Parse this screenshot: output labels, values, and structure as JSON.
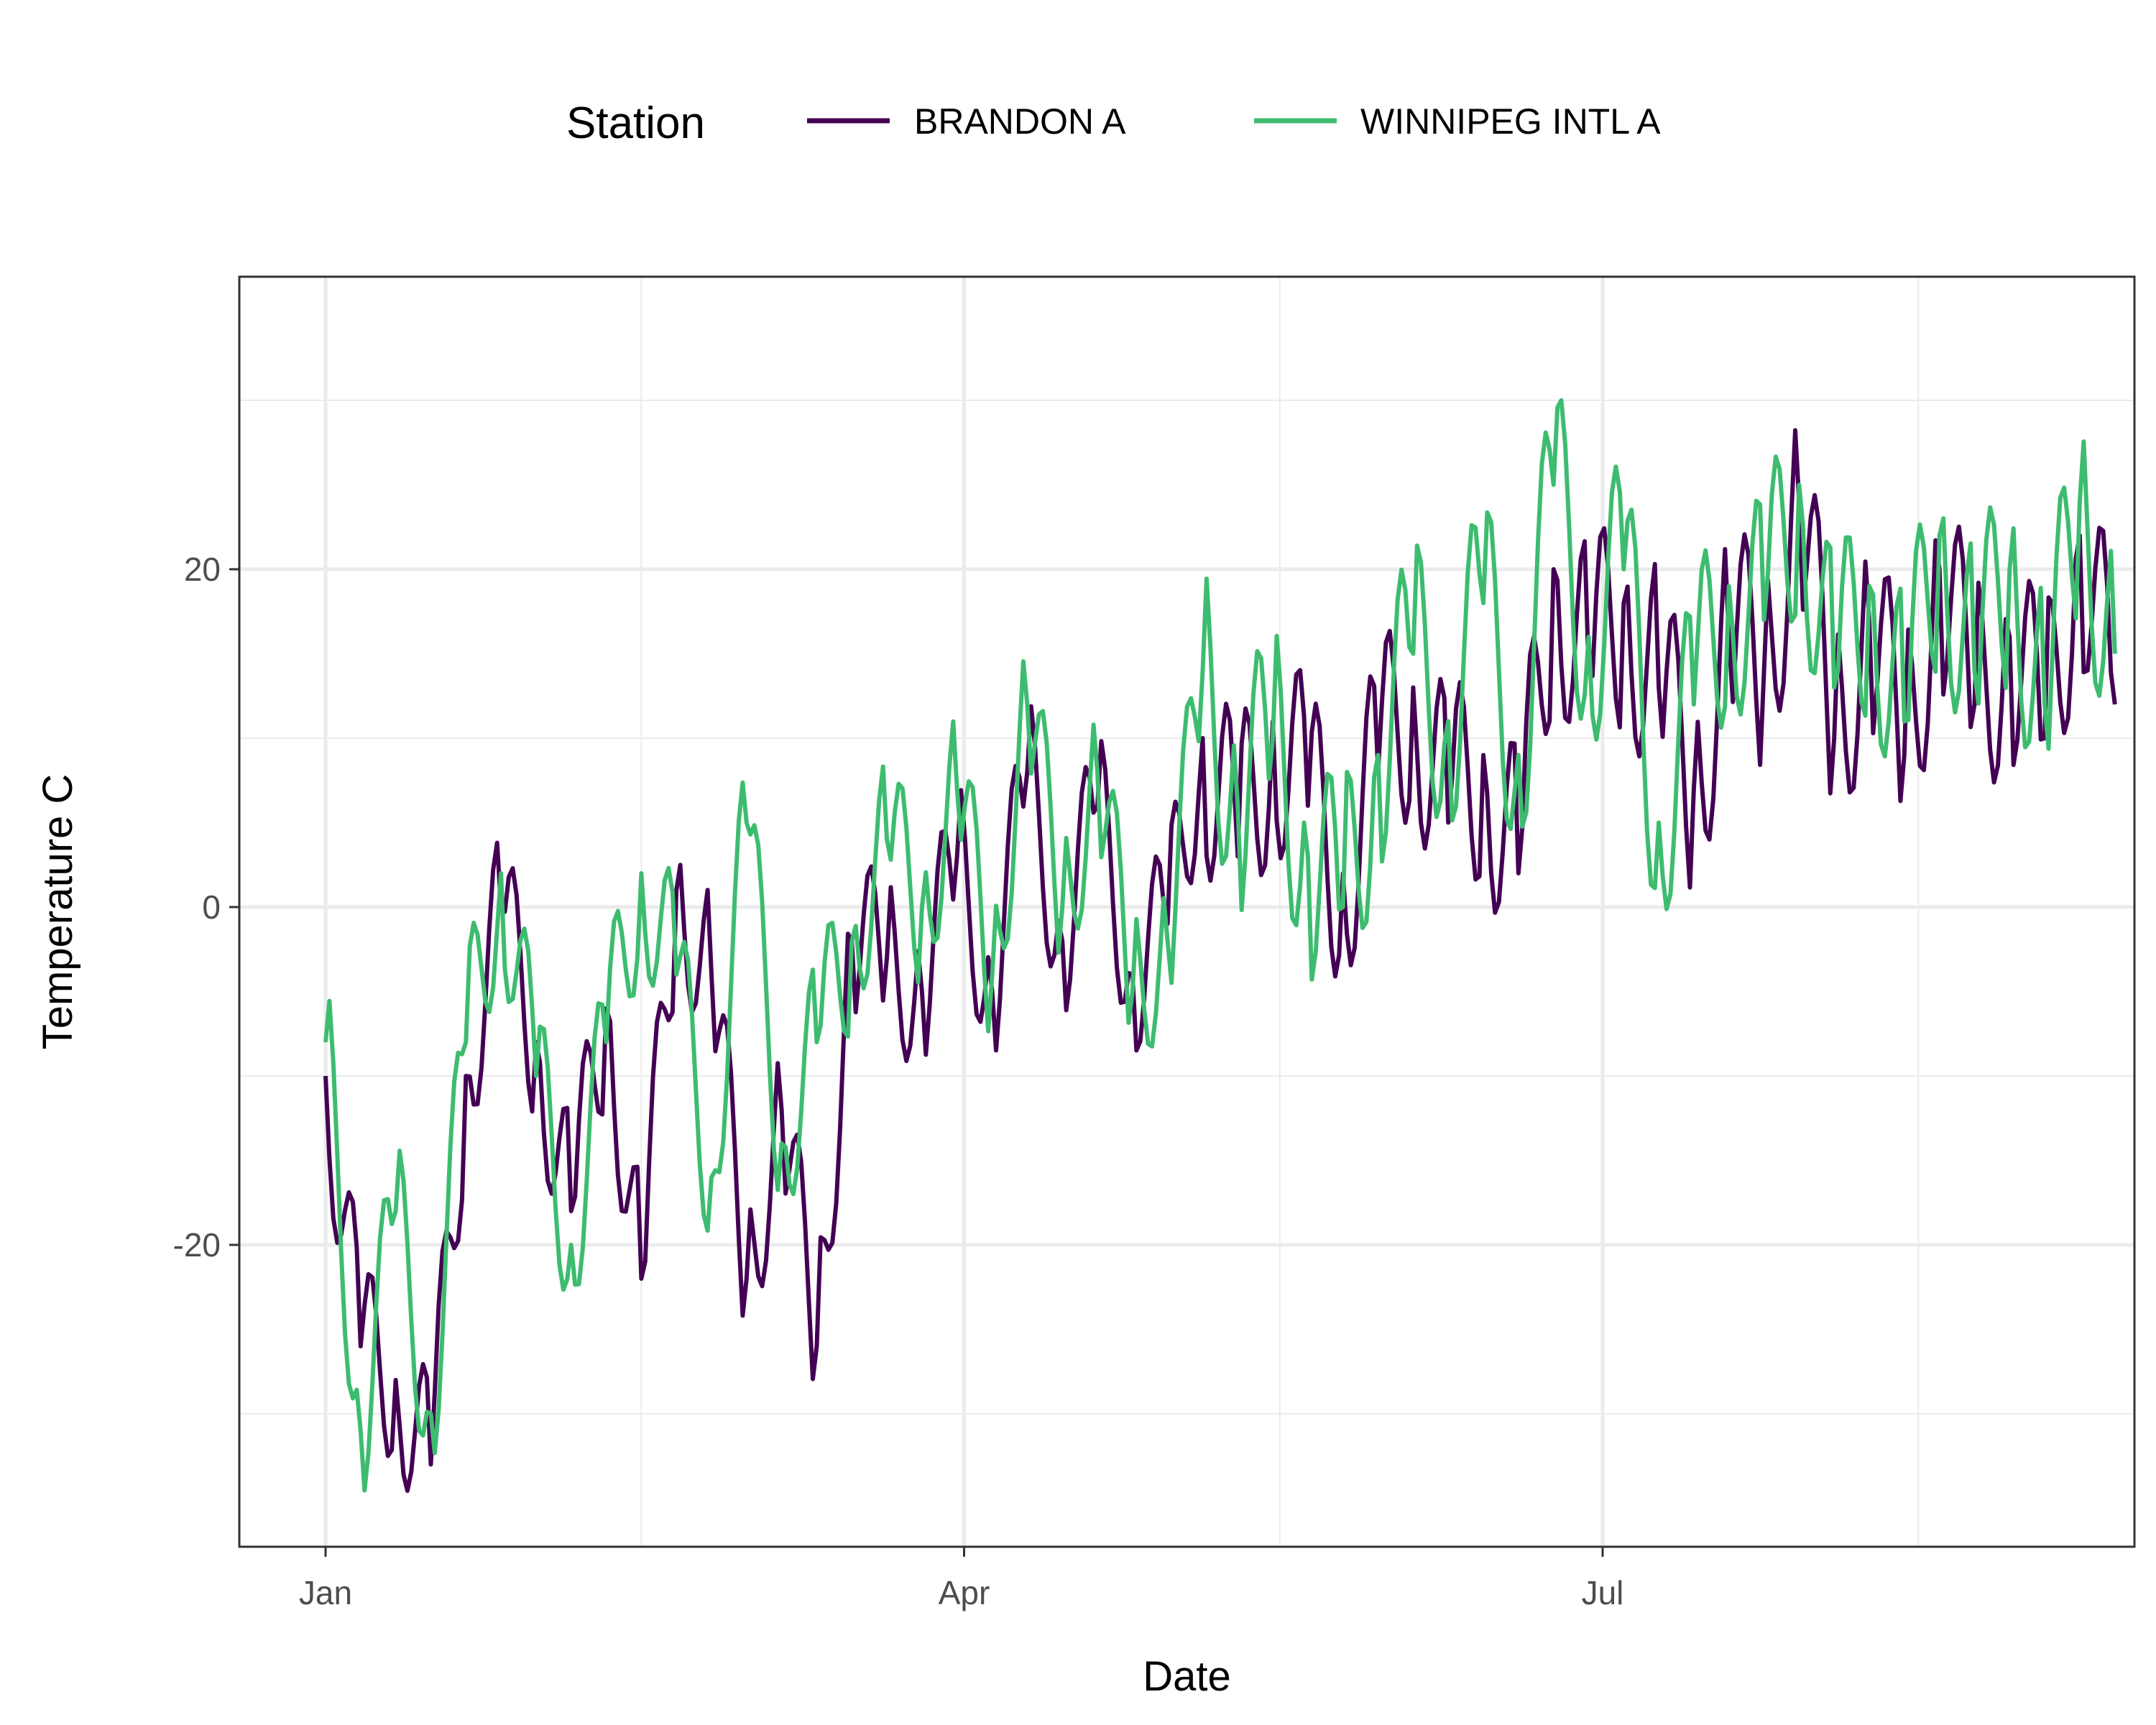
{
  "chart_data": {
    "type": "line",
    "title": "",
    "xlabel": "Date",
    "ylabel": "Temperature C",
    "legend": {
      "title": "Station",
      "position": "top"
    },
    "grid": true,
    "x_range": [
      "2024-01-01",
      "2024-09-12"
    ],
    "ylim": [
      -36,
      37
    ],
    "x_ticks": [
      {
        "date": "2024-01-01",
        "label": "Jan"
      },
      {
        "date": "2024-04-01",
        "label": "Apr"
      },
      {
        "date": "2024-07-01",
        "label": "Jul"
      }
    ],
    "y_ticks": [
      -20,
      0,
      20
    ],
    "series": [
      {
        "name": "BRANDON A",
        "color": "#440154",
        "x": [
          "2024-01-01",
          "2024-01-06",
          "2024-01-11",
          "2024-01-16",
          "2024-01-21",
          "2024-01-26",
          "2024-01-31",
          "2024-02-05",
          "2024-02-10",
          "2024-02-15",
          "2024-02-20",
          "2024-02-25",
          "2024-03-01",
          "2024-03-06",
          "2024-03-11",
          "2024-03-16",
          "2024-03-21",
          "2024-03-26",
          "2024-03-31",
          "2024-04-05",
          "2024-04-10",
          "2024-04-15",
          "2024-04-20",
          "2024-04-25",
          "2024-04-30",
          "2024-05-05",
          "2024-05-10",
          "2024-05-15",
          "2024-05-20",
          "2024-05-25",
          "2024-05-30",
          "2024-06-04",
          "2024-06-09",
          "2024-06-14",
          "2024-06-19",
          "2024-06-24",
          "2024-06-29",
          "2024-07-04",
          "2024-07-09",
          "2024-07-14",
          "2024-07-19",
          "2024-07-24",
          "2024-07-29",
          "2024-08-03",
          "2024-08-08",
          "2024-08-13",
          "2024-08-18",
          "2024-08-23",
          "2024-08-28",
          "2024-09-02",
          "2024-09-07",
          "2024-09-12"
        ],
        "values": [
          -10,
          -26,
          -28,
          -33,
          -10,
          0,
          -8,
          -18,
          -6,
          -22,
          1,
          -4,
          -22,
          -12,
          -26,
          -2,
          -3,
          -5,
          3,
          -5,
          8,
          -2,
          6,
          -4,
          -1,
          10,
          3,
          11,
          6,
          2,
          8,
          13,
          5,
          9,
          2,
          20,
          14,
          18,
          13,
          7,
          16,
          14,
          24,
          10,
          17,
          9,
          20,
          12,
          16,
          10,
          22,
          12
        ]
      },
      {
        "name": "WINNIPEG INTL A",
        "color": "#3dbc6f",
        "x": [
          "2024-01-01",
          "2024-01-06",
          "2024-01-11",
          "2024-01-16",
          "2024-01-21",
          "2024-01-26",
          "2024-01-31",
          "2024-02-05",
          "2024-02-10",
          "2024-02-15",
          "2024-02-20",
          "2024-02-25",
          "2024-03-01",
          "2024-03-06",
          "2024-03-11",
          "2024-03-16",
          "2024-03-21",
          "2024-03-26",
          "2024-03-31",
          "2024-04-05",
          "2024-04-10",
          "2024-04-15",
          "2024-04-20",
          "2024-04-25",
          "2024-04-30",
          "2024-05-05",
          "2024-05-10",
          "2024-05-15",
          "2024-05-20",
          "2024-05-25",
          "2024-05-30",
          "2024-06-04",
          "2024-06-09",
          "2024-06-14",
          "2024-06-19",
          "2024-06-24",
          "2024-06-29",
          "2024-07-04",
          "2024-07-09",
          "2024-07-14",
          "2024-07-19",
          "2024-07-24",
          "2024-07-29",
          "2024-08-03",
          "2024-08-08",
          "2024-08-13",
          "2024-08-18",
          "2024-08-23",
          "2024-08-28",
          "2024-09-02",
          "2024-09-07",
          "2024-09-12"
        ],
        "values": [
          -8,
          -31,
          -18,
          -30,
          -8,
          2,
          -10,
          -20,
          -8,
          2,
          -4,
          -16,
          5,
          -14,
          -8,
          -2,
          4,
          0,
          7,
          -4,
          12,
          0,
          8,
          -5,
          -2,
          14,
          6,
          10,
          3,
          0,
          9,
          15,
          11,
          18,
          9,
          25,
          16,
          20,
          5,
          12,
          19,
          17,
          25,
          13,
          19,
          11,
          22,
          14,
          20,
          12,
          24,
          15
        ]
      }
    ]
  }
}
